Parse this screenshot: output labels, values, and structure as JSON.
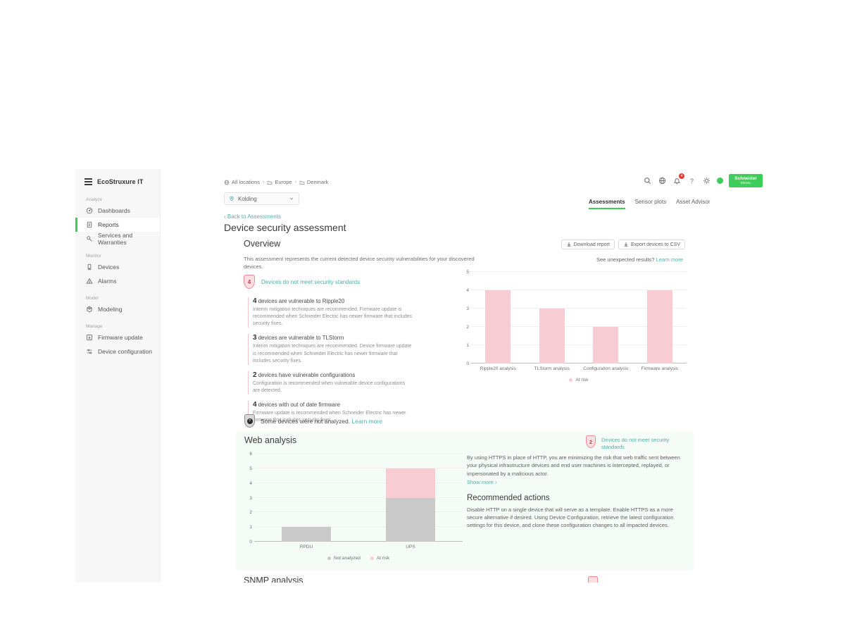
{
  "colors": {
    "accent_green": "#3dcd58",
    "link_teal": "#4fb0a9",
    "risk_pink": "#f8ccd3",
    "not_analyzed_gray": "#c9c9c9",
    "badge_red": "#e53935"
  },
  "sidebar": {
    "brand": "EcoStruxure IT",
    "sections": [
      {
        "label": "Analyze",
        "items": [
          {
            "label": "Dashboards",
            "icon": "dashboards-icon",
            "active": false
          },
          {
            "label": "Reports",
            "icon": "reports-icon",
            "active": true
          },
          {
            "label": "Services and Warranties",
            "icon": "services-icon",
            "active": false
          }
        ]
      },
      {
        "label": "Monitor",
        "items": [
          {
            "label": "Devices",
            "icon": "devices-icon",
            "active": false
          },
          {
            "label": "Alarms",
            "icon": "alarms-icon",
            "active": false
          }
        ]
      },
      {
        "label": "Model",
        "items": [
          {
            "label": "Modeling",
            "icon": "modeling-icon",
            "active": false
          }
        ]
      },
      {
        "label": "Manage",
        "items": [
          {
            "label": "Firmware update",
            "icon": "firmware-icon",
            "active": false
          },
          {
            "label": "Device configuration",
            "icon": "device-config-icon",
            "active": false
          }
        ]
      }
    ]
  },
  "topbar": {
    "breadcrumb": [
      {
        "label": "All locations",
        "icon": "globe-icon"
      },
      {
        "label": "Europe",
        "icon": "folder-icon"
      },
      {
        "label": "Denmark",
        "icon": "folder-icon"
      }
    ],
    "location_select": {
      "value": "Kolding"
    },
    "notification_count": "4",
    "se_logo": {
      "line1": "Schneider",
      "line2": "Electric"
    }
  },
  "tabs": [
    {
      "label": "Assessments",
      "active": true
    },
    {
      "label": "Sensor plots",
      "active": false
    },
    {
      "label": "Asset Advisor",
      "active": false
    }
  ],
  "page": {
    "back_link": "‹ Back to Assessments",
    "title": "Device security assessment"
  },
  "overview": {
    "heading": "Overview",
    "download_button": "Download report",
    "export_button": "Export devices to CSV",
    "description": "This assessment represents the current detected device security vulnerabilities for your discovered devices.",
    "unexpected_text": "See unexpected results?",
    "unexpected_link": "Learn more",
    "badge": {
      "count": "4",
      "label": "Devices do not meet security standards"
    },
    "findings": [
      {
        "count": "4",
        "title": "devices are vulnerable to Ripple20",
        "description": "Interim mitigation techniques are recommended. Firmware update is recommended when Schneider Electric has newer firmware that includes security fixes."
      },
      {
        "count": "3",
        "title": "devices are vulnerable to TLStorm",
        "description": "Interim mitigation techniques are recommended. Device firmware update is recommended when Schneider Electric has newer firmware that includes security fixes."
      },
      {
        "count": "2",
        "title": "devices have vulnerable configurations",
        "description": "Configuration is recommended when vulnerable device configurations are detected."
      },
      {
        "count": "4",
        "title": "devices with out of date firmware",
        "description": "Firmware update is recommended when Schneider Electric has newer firmware that includes security fixes."
      }
    ],
    "not_analyzed": {
      "text": "Some devices were not analyzed.",
      "link": "Learn more"
    }
  },
  "web_analysis": {
    "heading": "Web analysis",
    "badge": {
      "count": "2",
      "label": "Devices do not meet security standards"
    },
    "description": "By using HTTPS in place of HTTP, you are minimizing the risk that web traffic sent between your physical infrastructure devices and end user machines is intercepted, replayed, or impersonated by a malicious actor.",
    "show_more": "Show more ›",
    "recommended_heading": "Recommended actions",
    "recommended_text": "Disable HTTP on a single device that will serve as a template. Enable HTTPS as a more secure alternative if desired. Using Device Configuration, retrieve the latest configuration settings for this device, and clone these configuration changes to all impacted devices."
  },
  "snmp": {
    "heading": "SNMP analysis"
  },
  "chart_data": [
    {
      "id": "overview_chart",
      "type": "bar",
      "title": "",
      "categories": [
        "Ripple20 analysis",
        "TLStorm analysis",
        "Configuration analysis",
        "Firmware analysis"
      ],
      "series": [
        {
          "name": "At risk",
          "values": [
            4,
            3,
            2,
            4
          ],
          "color": "#f8ccd3"
        }
      ],
      "xlabel": "",
      "ylabel": "",
      "ylim": [
        0,
        5
      ],
      "yticks": [
        0,
        1,
        2,
        3,
        4,
        5
      ],
      "grid": true,
      "legend_position": "bottom"
    },
    {
      "id": "web_chart",
      "type": "stacked-bar",
      "title": "",
      "categories": [
        "RPDU",
        "UPS"
      ],
      "series": [
        {
          "name": "Not analyzed",
          "values": [
            1,
            3
          ],
          "color": "#c9c9c9"
        },
        {
          "name": "At risk",
          "values": [
            0,
            2
          ],
          "color": "#f8ccd3"
        }
      ],
      "xlabel": "",
      "ylabel": "",
      "ylim": [
        0,
        6
      ],
      "yticks": [
        0,
        1,
        2,
        3,
        4,
        5,
        6
      ],
      "grid": true,
      "legend_position": "bottom"
    }
  ]
}
